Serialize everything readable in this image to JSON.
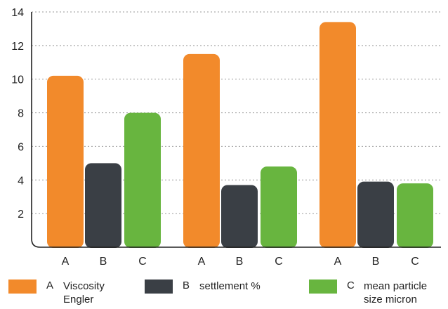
{
  "chart_data": {
    "type": "bar",
    "categories": [
      "A",
      "B",
      "C",
      "A",
      "B",
      "C",
      "A",
      "B",
      "C"
    ],
    "values": [
      10.2,
      5.0,
      8.0,
      11.5,
      3.7,
      4.8,
      13.4,
      3.9,
      3.8
    ],
    "colors": [
      "#f28a2b",
      "#3a3f45",
      "#68b53f",
      "#f28a2b",
      "#3a3f45",
      "#68b53f",
      "#f28a2b",
      "#3a3f45",
      "#68b53f"
    ],
    "ylim": [
      0,
      14
    ],
    "yticks": [
      "2",
      "4",
      "6",
      "8",
      "10",
      "12",
      "14"
    ],
    "grid": true,
    "legend_position": "bottom"
  },
  "legend": [
    {
      "key": "A",
      "label": "Viscosity Engler",
      "color": "#f28a2b"
    },
    {
      "key": "B",
      "label": "settlement %",
      "color": "#3a3f45"
    },
    {
      "key": "C",
      "label": "mean particle size micron",
      "color": "#68b53f"
    }
  ]
}
